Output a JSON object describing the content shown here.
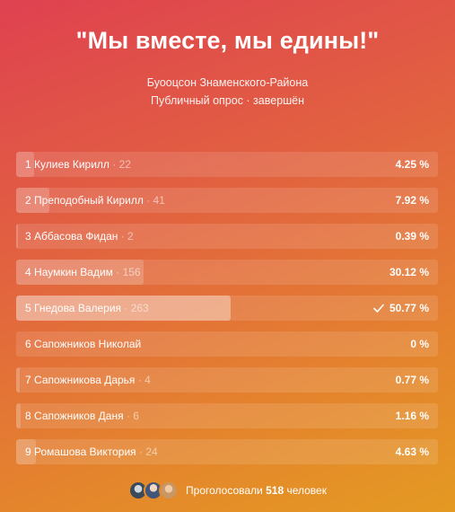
{
  "poll": {
    "title": "\"Мы вместе, мы едины!\"",
    "group": "Буооцсон Знаменского-Района",
    "type": "Публичный опрос · завершён",
    "options": [
      {
        "num": "1",
        "name": "Кулиев Кирилл",
        "votes": " · 22",
        "percent": "4.25 %",
        "share": 4.25,
        "chosen": false
      },
      {
        "num": "2",
        "name": "Преподобный Кирилл",
        "votes": " · 41",
        "percent": "7.92 %",
        "share": 7.92,
        "chosen": false
      },
      {
        "num": "3",
        "name": "Аббасова Фидан",
        "votes": " · 2",
        "percent": "0.39 %",
        "share": 0.39,
        "chosen": false
      },
      {
        "num": "4",
        "name": "Наумкин Вадим",
        "votes": " · 156",
        "percent": "30.12 %",
        "share": 30.12,
        "chosen": false
      },
      {
        "num": "5",
        "name": "Гнедова Валерия",
        "votes": " · 263",
        "percent": "50.77 %",
        "share": 50.77,
        "chosen": true
      },
      {
        "num": "6",
        "name": "Сапожников Николай",
        "votes": "",
        "percent": "0 %",
        "share": 0,
        "chosen": false
      },
      {
        "num": "7",
        "name": "Сапожникова Дарья",
        "votes": " · 4",
        "percent": "0.77 %",
        "share": 0.77,
        "chosen": false
      },
      {
        "num": "8",
        "name": "Сапожников Даня",
        "votes": " · 6",
        "percent": "1.16 %",
        "share": 1.16,
        "chosen": false
      },
      {
        "num": "9",
        "name": "Ромашова Виктория",
        "votes": " · 24",
        "percent": "4.63 %",
        "share": 4.63,
        "chosen": false
      }
    ],
    "footer": {
      "voted_prefix": "Проголосовали",
      "voted_count": "518",
      "voted_suffix": "человек"
    }
  }
}
